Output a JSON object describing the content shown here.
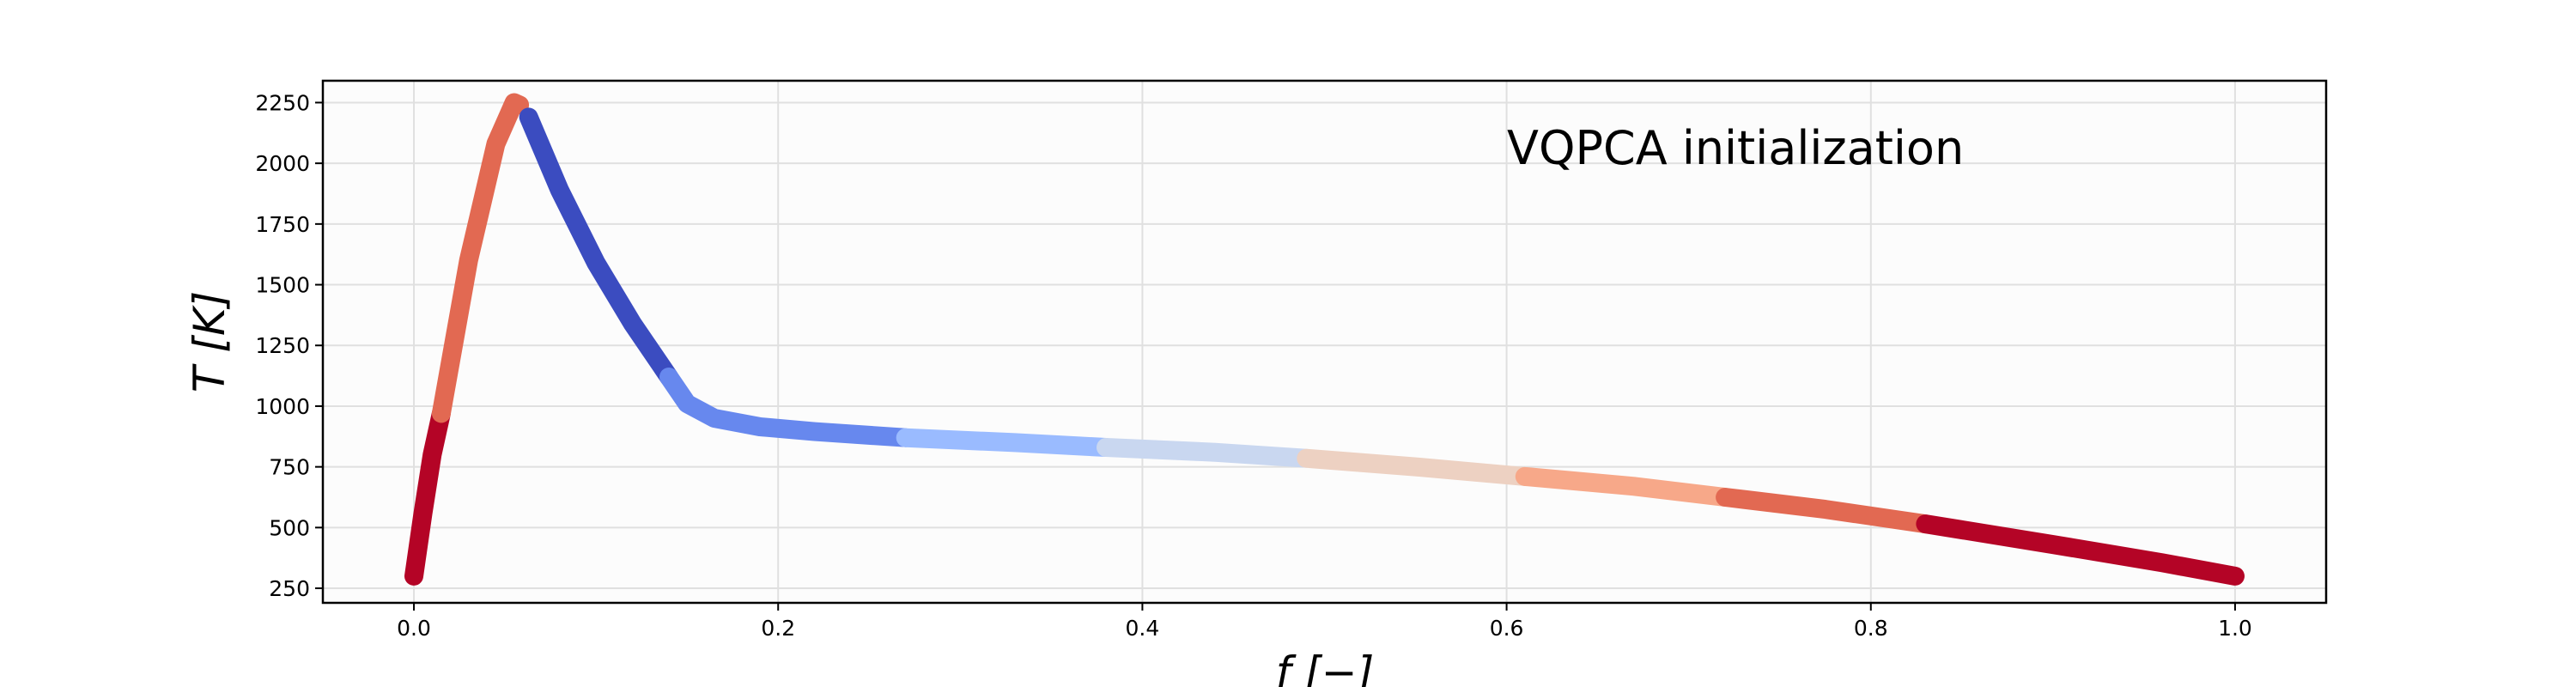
{
  "chart_data": {
    "type": "line",
    "annotation": "VQPCA initialization",
    "xlabel": "f [−]",
    "ylabel": "T [K]",
    "xlim": [
      -0.05,
      1.05
    ],
    "ylim": [
      190,
      2340
    ],
    "grid": true,
    "x_ticks": [
      0.0,
      0.2,
      0.4,
      0.6,
      0.8,
      1.0
    ],
    "x_tick_labels": [
      "0.0",
      "0.2",
      "0.4",
      "0.6",
      "0.8",
      "1.0"
    ],
    "y_ticks": [
      250,
      500,
      750,
      1000,
      1250,
      1500,
      1750,
      2000,
      2250
    ],
    "y_tick_labels": [
      "250",
      "500",
      "750",
      "1000",
      "1250",
      "1500",
      "1750",
      "2000",
      "2250"
    ],
    "segments": [
      {
        "color": "#b40426",
        "x": [
          0.0,
          0.005,
          0.01,
          0.015
        ],
        "y": [
          300,
          560,
          800,
          970
        ]
      },
      {
        "color": "#e26952",
        "x": [
          0.015,
          0.03,
          0.045,
          0.055,
          0.058
        ],
        "y": [
          970,
          1600,
          2080,
          2250,
          2240
        ]
      },
      {
        "color": "#3b4cc0",
        "x": [
          0.063,
          0.08,
          0.1,
          0.12,
          0.14
        ],
        "y": [
          2190,
          1890,
          1590,
          1340,
          1120
        ]
      },
      {
        "color": "#6788ee",
        "x": [
          0.14,
          0.15,
          0.165,
          0.19,
          0.22,
          0.27
        ],
        "y": [
          1120,
          1010,
          950,
          915,
          895,
          870
        ]
      },
      {
        "color": "#9abbff",
        "x": [
          0.27,
          0.33,
          0.38
        ],
        "y": [
          870,
          850,
          830
        ]
      },
      {
        "color": "#c9d7f0",
        "x": [
          0.38,
          0.44,
          0.49
        ],
        "y": [
          830,
          810,
          785
        ]
      },
      {
        "color": "#edd1c2",
        "x": [
          0.49,
          0.55,
          0.61
        ],
        "y": [
          785,
          750,
          710
        ]
      },
      {
        "color": "#f7a889",
        "x": [
          0.61,
          0.67,
          0.72
        ],
        "y": [
          710,
          670,
          625
        ]
      },
      {
        "color": "#e26952",
        "x": [
          0.72,
          0.775,
          0.83
        ],
        "y": [
          625,
          575,
          515
        ]
      },
      {
        "color": "#b40426",
        "x": [
          0.83,
          0.9,
          0.96,
          1.0
        ],
        "y": [
          515,
          430,
          355,
          300
        ]
      }
    ]
  }
}
